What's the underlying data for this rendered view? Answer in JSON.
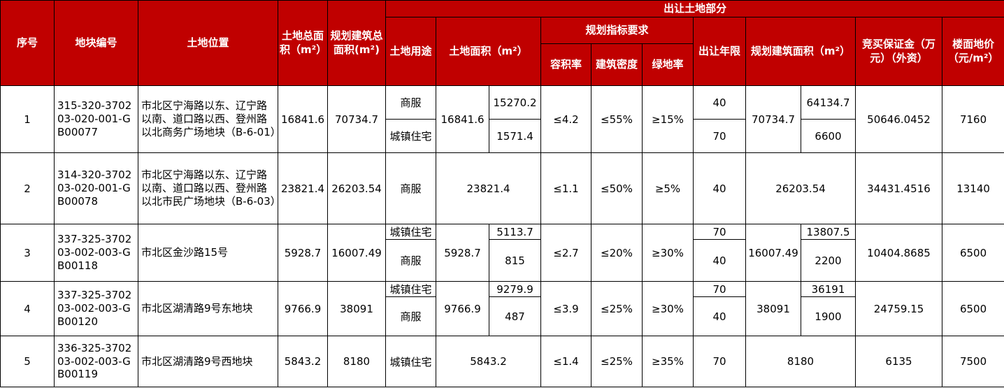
{
  "header": {
    "seq": "序号",
    "plot_no": "地块编号",
    "location": "土地位置",
    "total_area": "土地总面积（m²）",
    "total_build": "规划建筑总面积(m²)",
    "transfer_part": "出让土地部分",
    "use": "土地用途",
    "land_area": "土地面积（m²）",
    "planning": "规划指标要求",
    "far": "容积率",
    "density": "建筑密度",
    "green": "绿地率",
    "years": "出让年限",
    "plan_build": "规划建筑面积（m²）",
    "deposit": "竞买保证金（万元）（外资）",
    "floor_price": "楼面地价（元/m²）"
  },
  "rows": [
    {
      "seq": "1",
      "plot_no": "315-320-370203-020-001-GB00077",
      "location": "市北区宁海路以东、辽宁路以南、道口路以西、登州路以北商务广场地块（B-6-01）",
      "total_area": "16841.6",
      "total_build": "70734.7",
      "uses": [
        "商服",
        "城镇住宅"
      ],
      "land_area": "16841.6",
      "land_area_sub": [
        "15270.2",
        "1571.4"
      ],
      "far": "≤4.2",
      "density": "≤55%",
      "green": "≥15%",
      "years": [
        "40",
        "70"
      ],
      "plan_build": "70734.7",
      "plan_build_sub": [
        "64134.7",
        "6600"
      ],
      "deposit": "50646.0452",
      "floor_price": "7160"
    },
    {
      "seq": "2",
      "plot_no": "314-320-370203-020-001-GB00078",
      "location": "市北区宁海路以东、辽宁路以南、道口路以西、登州路以北市民广场地块（B-6-03）",
      "total_area": "23821.4",
      "total_build": "26203.54",
      "use": "商服",
      "land_area": "23821.4",
      "far": "≤1.1",
      "density": "≤50%",
      "green": "≥5%",
      "years": "40",
      "plan_build": "26203.54",
      "deposit": "34431.4516",
      "floor_price": "13140"
    },
    {
      "seq": "3",
      "plot_no": "337-325-370203-002-003-GB00118",
      "location": "市北区金沙路15号",
      "total_area": "5928.7",
      "total_build": "16007.49",
      "uses": [
        "城镇住宅",
        "商服"
      ],
      "land_area": "5928.7",
      "land_area_sub": [
        "5113.7",
        "815"
      ],
      "far": "≤2.7",
      "density": "≤20%",
      "green": "≥30%",
      "years": [
        "70",
        "40"
      ],
      "plan_build": "16007.49",
      "plan_build_sub": [
        "13807.5",
        "2200"
      ],
      "deposit": "10404.8685",
      "floor_price": "6500"
    },
    {
      "seq": "4",
      "plot_no": "337-325-370203-002-003-GB00120",
      "location": "市北区湖清路9号东地块",
      "total_area": "9766.9",
      "total_build": "38091",
      "uses": [
        "城镇住宅",
        "商服"
      ],
      "land_area": "9766.9",
      "land_area_sub": [
        "9279.9",
        "487"
      ],
      "far": "≤3.9",
      "density": "≤25%",
      "green": "≥30%",
      "years": [
        "70",
        "40"
      ],
      "plan_build": "38091",
      "plan_build_sub": [
        "36191",
        "1900"
      ],
      "deposit": "24759.15",
      "floor_price": "6500"
    },
    {
      "seq": "5",
      "plot_no": "336-325-370203-002-003-GB00119",
      "location": "市北区湖清路9号西地块",
      "total_area": "5843.2",
      "total_build": "8180",
      "use": "城镇住宅",
      "land_area": "5843.2",
      "far": "≤1.4",
      "density": "≤25%",
      "green": "≥35%",
      "years": "70",
      "plan_build": "8180",
      "deposit": "6135",
      "floor_price": "7500"
    }
  ]
}
